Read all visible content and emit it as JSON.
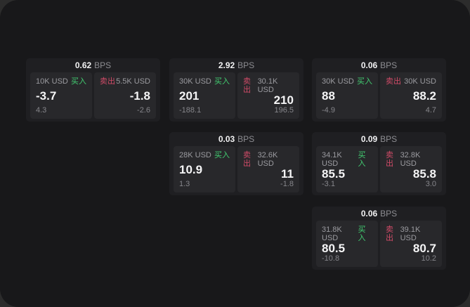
{
  "colors": {
    "window_bg": "#18181a",
    "card_bg": "#1f1f22",
    "panel_bg": "#28282b",
    "buy_green": "#42cd71",
    "sell_red": "#d14b68",
    "text_primary": "#f5f5f6",
    "text_muted": "#9b9ba0"
  },
  "cards": [
    {
      "bps_value": "0.62",
      "bps_unit": "BPS",
      "buy": {
        "amount": "10K USD",
        "side_label": "买入",
        "price": "-3.7",
        "delta": "4.3"
      },
      "sell": {
        "side_label": "卖出",
        "amount": "5.5K USD",
        "price": "-1.8",
        "delta": "-2.6"
      }
    },
    {
      "bps_value": "2.92",
      "bps_unit": "BPS",
      "buy": {
        "amount": "30K USD",
        "side_label": "买入",
        "price": "201",
        "delta": "-188.1"
      },
      "sell": {
        "side_label": "卖出",
        "amount": "30.1K USD",
        "price": "210",
        "delta": "196.5"
      }
    },
    {
      "bps_value": "0.06",
      "bps_unit": "BPS",
      "buy": {
        "amount": "30K USD",
        "side_label": "买入",
        "price": "88",
        "delta": "-4.9"
      },
      "sell": {
        "side_label": "卖出",
        "amount": "30K USD",
        "price": "88.2",
        "delta": "4.7"
      }
    },
    {
      "bps_value": "0.03",
      "bps_unit": "BPS",
      "buy": {
        "amount": "28K USD",
        "side_label": "买入",
        "price": "10.9",
        "delta": "1.3"
      },
      "sell": {
        "side_label": "卖出",
        "amount": "32.6K USD",
        "price": "11",
        "delta": "-1.8"
      }
    },
    {
      "bps_value": "0.09",
      "bps_unit": "BPS",
      "buy": {
        "amount": "34.1K USD",
        "side_label": "买入",
        "price": "85.5",
        "delta": "-3.1"
      },
      "sell": {
        "side_label": "卖出",
        "amount": "32.8K USD",
        "price": "85.8",
        "delta": "3.0"
      }
    },
    {
      "bps_value": "0.06",
      "bps_unit": "BPS",
      "buy": {
        "amount": "31.8K USD",
        "side_label": "买入",
        "price": "80.5",
        "delta": "-10.8"
      },
      "sell": {
        "side_label": "卖出",
        "amount": "39.1K USD",
        "price": "80.7",
        "delta": "10.2"
      }
    }
  ]
}
